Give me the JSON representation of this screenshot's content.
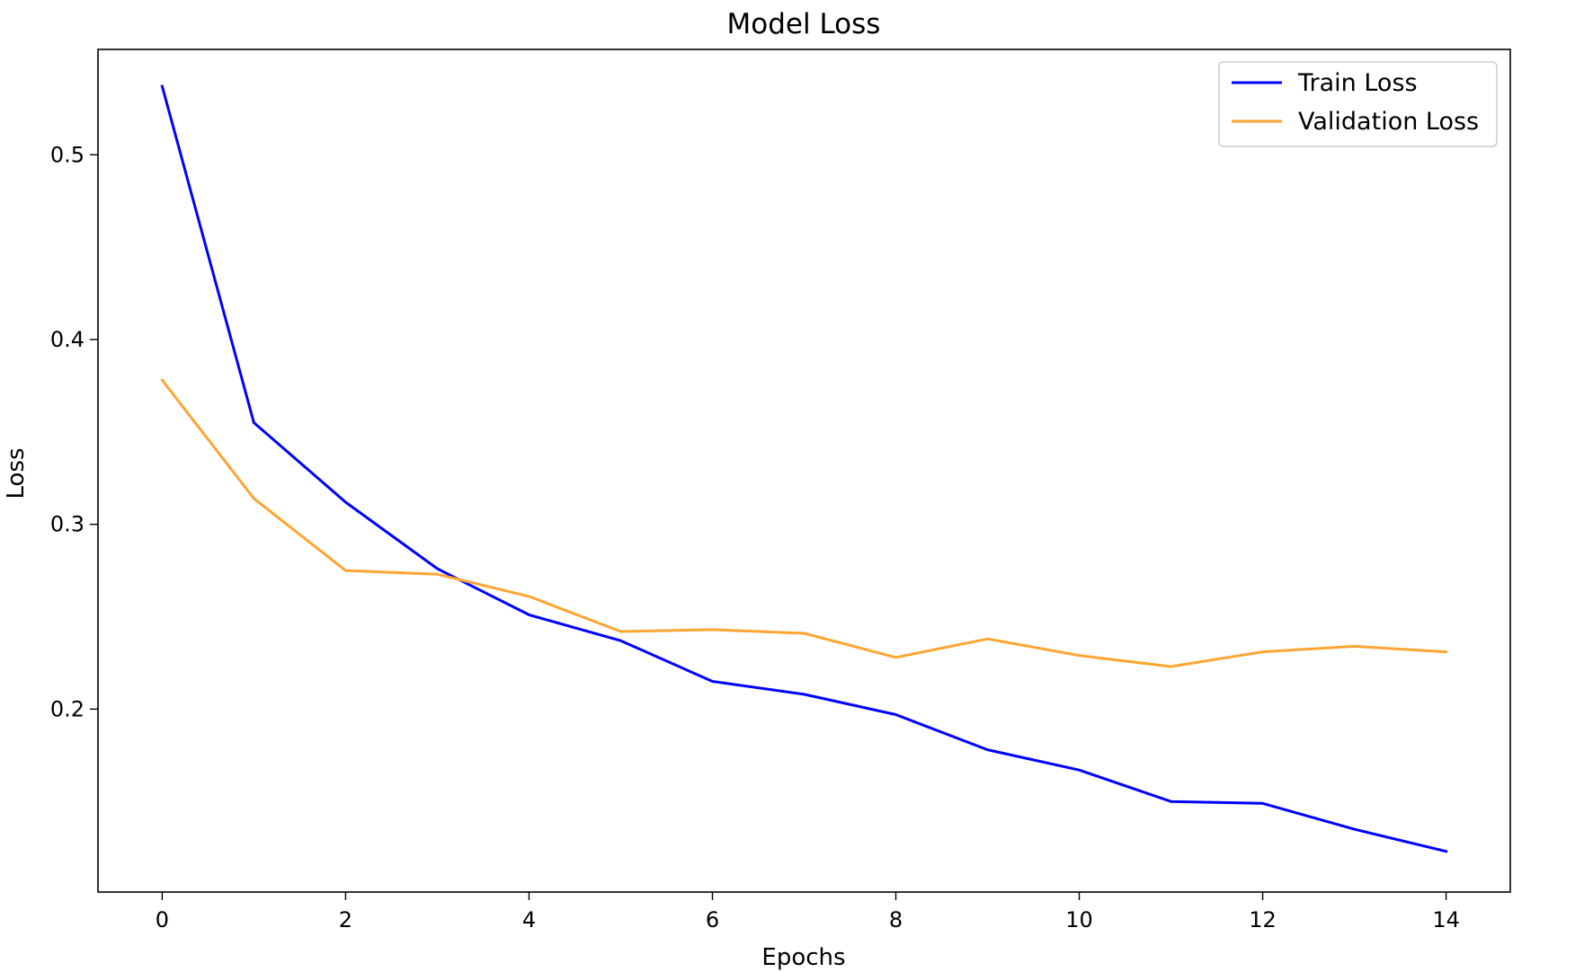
{
  "chart_data": {
    "type": "line",
    "title": "Model Loss",
    "xlabel": "Epochs",
    "ylabel": "Loss",
    "xlim": [
      -0.7,
      14.7
    ],
    "ylim": [
      0.101,
      0.557
    ],
    "xticks": [
      0,
      2,
      4,
      6,
      8,
      10,
      12,
      14
    ],
    "yticks": [
      0.2,
      0.3,
      0.4,
      0.5
    ],
    "grid": false,
    "legend": "top-right",
    "x": [
      0,
      1,
      2,
      3,
      4,
      5,
      6,
      7,
      8,
      9,
      10,
      11,
      12,
      13,
      14
    ],
    "series": [
      {
        "name": "Train Loss",
        "color": "#0000ff",
        "values": [
          0.537,
          0.355,
          0.312,
          0.276,
          0.251,
          0.237,
          0.215,
          0.208,
          0.197,
          0.178,
          0.167,
          0.15,
          0.149,
          0.135,
          0.123
        ]
      },
      {
        "name": "Validation Loss",
        "color": "#ffa533",
        "values": [
          0.378,
          0.314,
          0.275,
          0.273,
          0.261,
          0.242,
          0.243,
          0.241,
          0.228,
          0.238,
          0.229,
          0.223,
          0.231,
          0.234,
          0.231
        ]
      }
    ]
  }
}
